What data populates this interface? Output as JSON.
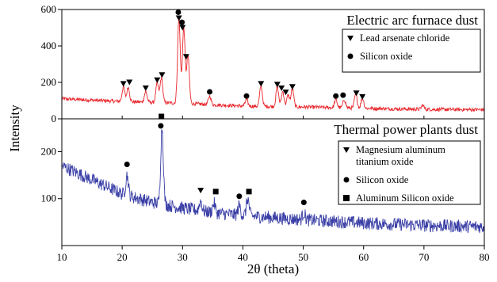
{
  "chart_data": [
    {
      "type": "line",
      "title": "Electric arc furnace dust",
      "xlabel": "2θ (theta)",
      "ylabel": "Intensity",
      "xlim": [
        10,
        80
      ],
      "ylim": [
        0,
        600
      ],
      "xticks": [
        "10",
        "20",
        "30",
        "40",
        "50",
        "60",
        "70",
        "80"
      ],
      "yticks": [
        "0",
        "200",
        "400",
        "600"
      ],
      "line_color": "#e8252b",
      "series": [
        {
          "baseline": [
            [
              10,
              110
            ],
            [
              20,
              95
            ],
            [
              30,
              85
            ],
            [
              40,
              70
            ],
            [
              50,
              65
            ],
            [
              60,
              58
            ],
            [
              70,
              52
            ],
            [
              80,
              50
            ]
          ],
          "peaks": [
            {
              "x": 20.2,
              "y": 175
            },
            {
              "x": 21.0,
              "y": 175
            },
            {
              "x": 23.9,
              "y": 150
            },
            {
              "x": 25.8,
              "y": 195
            },
            {
              "x": 26.5,
              "y": 225
            },
            {
              "x": 29.4,
              "y": 555
            },
            {
              "x": 30.2,
              "y": 500
            },
            {
              "x": 30.9,
              "y": 345
            },
            {
              "x": 34.5,
              "y": 125
            },
            {
              "x": 40.6,
              "y": 105
            },
            {
              "x": 43.0,
              "y": 180
            },
            {
              "x": 45.7,
              "y": 175
            },
            {
              "x": 46.6,
              "y": 150
            },
            {
              "x": 47.5,
              "y": 130
            },
            {
              "x": 48.2,
              "y": 165
            },
            {
              "x": 55.4,
              "y": 105
            },
            {
              "x": 56.8,
              "y": 105
            },
            {
              "x": 58.7,
              "y": 135
            },
            {
              "x": 59.8,
              "y": 115
            },
            {
              "x": 69.8,
              "y": 75
            }
          ]
        }
      ],
      "markers": [
        {
          "symbol": "triangle",
          "x": 20.2,
          "y": 192
        },
        {
          "symbol": "triangle",
          "x": 21.2,
          "y": 200
        },
        {
          "symbol": "triangle",
          "x": 23.9,
          "y": 168
        },
        {
          "symbol": "triangle",
          "x": 25.8,
          "y": 212
        },
        {
          "symbol": "triangle",
          "x": 26.6,
          "y": 240
        },
        {
          "symbol": "triangle",
          "x": 29.4,
          "y": 552
        },
        {
          "symbol": "triangle",
          "x": 30.0,
          "y": 500
        },
        {
          "symbol": "triangle",
          "x": 30.6,
          "y": 340
        },
        {
          "symbol": "triangle",
          "x": 43.0,
          "y": 192
        },
        {
          "symbol": "triangle",
          "x": 45.7,
          "y": 188
        },
        {
          "symbol": "triangle",
          "x": 46.4,
          "y": 168
        },
        {
          "symbol": "triangle",
          "x": 47.1,
          "y": 145
        },
        {
          "symbol": "triangle",
          "x": 48.2,
          "y": 175
        },
        {
          "symbol": "triangle",
          "x": 58.8,
          "y": 140
        },
        {
          "symbol": "triangle",
          "x": 59.8,
          "y": 120
        },
        {
          "symbol": "circle",
          "x": 29.3,
          "y": 585
        },
        {
          "symbol": "circle",
          "x": 29.9,
          "y": 530
        },
        {
          "symbol": "circle",
          "x": 34.5,
          "y": 148
        },
        {
          "symbol": "circle",
          "x": 40.6,
          "y": 125
        },
        {
          "symbol": "circle",
          "x": 55.4,
          "y": 125
        },
        {
          "symbol": "circle",
          "x": 56.6,
          "y": 130
        }
      ],
      "legend": {
        "placement": "top-right",
        "items": [
          {
            "symbol": "triangle",
            "label": "Lead arsenate chloride"
          },
          {
            "symbol": "circle",
            "label": "Silicon oxide"
          }
        ]
      }
    },
    {
      "type": "line",
      "title": "Thermal power plants dust",
      "xlabel": "2θ (theta)",
      "ylabel": "Intensity",
      "xlim": [
        10,
        80
      ],
      "ylim": [
        0,
        270
      ],
      "xticks": [
        "10",
        "20",
        "30",
        "40",
        "50",
        "60",
        "70",
        "80"
      ],
      "yticks": [
        "100",
        "200"
      ],
      "line_color": "#3a3fa6",
      "series": [
        {
          "baseline": [
            [
              10,
              170
            ],
            [
              15,
              140
            ],
            [
              20,
              110
            ],
            [
              25,
              92
            ],
            [
              30,
              80
            ],
            [
              35,
              70
            ],
            [
              40,
              64
            ],
            [
              50,
              55
            ],
            [
              60,
              48
            ],
            [
              70,
              43
            ],
            [
              80,
              40
            ]
          ],
          "peaks": [
            {
              "x": 20.8,
              "y": 150
            },
            {
              "x": 26.6,
              "y": 250
            },
            {
              "x": 33.0,
              "y": 95
            },
            {
              "x": 35.2,
              "y": 90
            },
            {
              "x": 39.4,
              "y": 85
            },
            {
              "x": 40.8,
              "y": 100
            },
            {
              "x": 50.1,
              "y": 70
            }
          ]
        }
      ],
      "markers": [
        {
          "symbol": "circle",
          "x": 20.8,
          "y": 173
        },
        {
          "symbol": "circle",
          "x": 26.4,
          "y": 255
        },
        {
          "symbol": "square",
          "x": 26.5,
          "y": 275
        },
        {
          "symbol": "triangle",
          "x": 33.0,
          "y": 117
        },
        {
          "symbol": "square",
          "x": 35.5,
          "y": 115
        },
        {
          "symbol": "circle",
          "x": 39.4,
          "y": 105
        },
        {
          "symbol": "square",
          "x": 41.0,
          "y": 115
        },
        {
          "symbol": "circle",
          "x": 50.1,
          "y": 92
        }
      ],
      "legend": {
        "placement": "top-right",
        "items": [
          {
            "symbol": "triangle",
            "label": "Magnesium aluminum\ntitanium oxide"
          },
          {
            "symbol": "circle",
            "label": "Silicon oxide"
          },
          {
            "symbol": "square",
            "label": "Aluminum Silicon oxide"
          }
        ]
      }
    }
  ]
}
